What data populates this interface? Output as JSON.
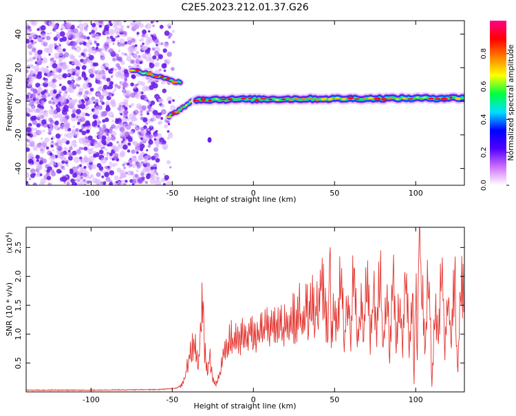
{
  "figure_title": "C2E5.2023.212.01.37.G26",
  "colors": {
    "plot_frame": "#000000",
    "snr_line": "#e3342f",
    "speckle": "#7a2cf0"
  },
  "chart_data": [
    {
      "type": "heatmap",
      "title": "C2E5.2023.212.01.37.G26",
      "xlabel": "Height of straight line (km)",
      "ylabel": "Frequency (Hz)",
      "xlim": [
        -140,
        130
      ],
      "ylim": [
        -50,
        48
      ],
      "x_ticks": [
        -100,
        -50,
        0,
        50,
        100
      ],
      "y_ticks": [
        -40,
        -20,
        0,
        20,
        40
      ],
      "noise_region_x": [
        -140,
        -55
      ],
      "features": [
        {
          "desc": "upper branch",
          "x": [
            -75,
            -45
          ],
          "y": [
            19,
            11
          ]
        },
        {
          "desc": "lower branch",
          "x": [
            -52,
            -36
          ],
          "y": [
            -9,
            1
          ]
        },
        {
          "desc": "main ridge",
          "x": [
            -35,
            130
          ],
          "y": [
            1,
            2
          ]
        },
        {
          "desc": "isolated blob",
          "x": [
            -27,
            -27
          ],
          "y": [
            -23,
            -23
          ]
        }
      ],
      "colorbar": {
        "label": "Normalized spectral amplitude",
        "range": [
          0,
          1
        ],
        "ticks": [
          "0.0",
          "0.2",
          "0.4",
          "0.6",
          "0.8"
        ],
        "colormap": [
          "#ffffff",
          "#d070ff",
          "#5000ff",
          "#0000ff",
          "#00e0ff",
          "#00ff40",
          "#ffff00",
          "#ff8000",
          "#ff0000",
          "#ff0088"
        ]
      }
    },
    {
      "type": "line",
      "xlabel": "Height of straight line (km)",
      "ylabel": "SNR (10 * v/v)",
      "exponent_label": "(x10",
      "exponent_sup": "4",
      "exponent_close": ")",
      "xlim": [
        -140,
        130
      ],
      "ylim": [
        0,
        2.85
      ],
      "x_ticks": [
        -100,
        -50,
        0,
        50,
        100
      ],
      "y_ticks": [
        "0.5",
        "1.0",
        "1.5",
        "2.0",
        "2.5"
      ],
      "series": [
        {
          "x": [
            -140,
            -100,
            -60,
            -48,
            -44,
            -42,
            -40,
            -38,
            -36,
            -35,
            -34,
            -33,
            -32,
            -31,
            -30,
            -29,
            -28,
            -27,
            -26,
            -25,
            -24,
            -23,
            -22,
            -21,
            -20,
            -19,
            -18,
            -16,
            -14,
            -12,
            -10,
            -8,
            -6,
            -4,
            -2,
            0,
            2,
            4,
            6,
            8,
            10,
            12,
            14,
            16,
            18,
            20,
            22,
            24,
            26,
            28,
            30,
            32,
            34,
            36,
            38,
            40,
            42,
            44,
            46,
            47,
            48,
            50,
            52,
            54,
            56,
            58,
            60,
            62,
            64,
            66,
            68,
            70,
            72,
            74,
            76,
            78,
            80,
            82,
            84,
            86,
            88,
            90,
            92,
            94,
            96,
            98,
            99,
            100,
            101,
            102,
            104,
            106,
            108,
            110,
            112,
            114,
            116,
            118,
            120,
            122,
            124,
            125,
            126,
            128,
            130
          ],
          "y": [
            0.03,
            0.03,
            0.04,
            0.06,
            0.12,
            0.3,
            0.55,
            0.75,
            0.92,
            0.6,
            0.45,
            0.85,
            1.3,
            1.7,
            0.7,
            0.5,
            0.35,
            0.65,
            0.4,
            0.22,
            0.18,
            0.12,
            0.2,
            0.3,
            0.45,
            0.6,
            0.75,
            0.82,
            0.95,
            0.9,
            1.02,
            0.95,
            1.05,
            0.98,
            1.1,
            1.05,
            1.0,
            1.12,
            1.05,
            1.18,
            1.1,
            1.25,
            1.15,
            1.2,
            1.08,
            1.3,
            1.1,
            1.35,
            1.2,
            1.45,
            1.25,
            1.55,
            1.3,
            1.75,
            1.35,
            1.65,
            1.95,
            1.45,
            1.05,
            2.4,
            0.95,
            1.5,
            1.1,
            2.2,
            0.9,
            1.7,
            0.95,
            2.35,
            0.85,
            1.6,
            1.0,
            2.1,
            0.9,
            1.75,
            1.05,
            2.25,
            0.8,
            1.8,
            0.75,
            2.15,
            1.0,
            1.6,
            0.85,
            2.3,
            0.7,
            1.9,
            0.15,
            2.1,
            0.6,
            2.85,
            1.7,
            0.8,
            2.3,
            0.1,
            1.5,
            0.9,
            2.2,
            0.7,
            1.6,
            0.85,
            2.25,
            1.0,
            0.38,
            2.05,
            1.4
          ]
        }
      ]
    }
  ]
}
